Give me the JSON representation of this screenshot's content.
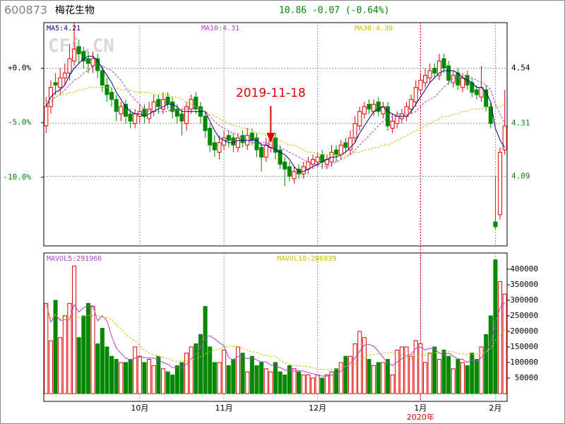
{
  "header": {
    "code": "600873",
    "name": "梅花生物",
    "quote": "10.86 -0.07 (-0.64%)"
  },
  "watermark": "CFi.CN",
  "chart_data": [
    {
      "type": "candlestick",
      "annotation": "2019-11-18",
      "up_color": "#e00000",
      "down_color": "#008800",
      "open": [
        4.3,
        4.38,
        4.48,
        4.46,
        4.5,
        4.52,
        4.57,
        4.63,
        4.61,
        4.58,
        4.55,
        4.58,
        4.53,
        4.47,
        4.44,
        4.41,
        4.35,
        4.39,
        4.35,
        4.31,
        4.34,
        4.37,
        4.33,
        4.36,
        4.41,
        4.37,
        4.42,
        4.4,
        4.37,
        4.35,
        4.31,
        4.37,
        4.42,
        4.38,
        4.34,
        4.29,
        4.23,
        4.19,
        4.22,
        4.26,
        4.25,
        4.21,
        4.26,
        4.22,
        4.27,
        4.25,
        4.21,
        4.17,
        4.21,
        4.25,
        4.2,
        4.15,
        4.13,
        4.08,
        4.12,
        4.1,
        4.12,
        4.14,
        4.15,
        4.18,
        4.14,
        4.15,
        4.2,
        4.18,
        4.23,
        4.2,
        4.25,
        4.3,
        4.35,
        4.39,
        4.36,
        4.4,
        4.35,
        4.38,
        4.29,
        4.31,
        4.33,
        4.34,
        4.37,
        4.4,
        4.45,
        4.48,
        4.5,
        4.54,
        4.51,
        4.58,
        4.55,
        4.48,
        4.52,
        4.46,
        4.51,
        4.48,
        4.45,
        4.42,
        4.45,
        4.38,
        3.9,
        3.93,
        4.2
      ],
      "high": [
        4.42,
        4.49,
        4.52,
        4.54,
        4.56,
        4.64,
        4.73,
        4.66,
        4.63,
        4.61,
        4.61,
        4.6,
        4.55,
        4.5,
        4.46,
        4.43,
        4.4,
        4.41,
        4.37,
        4.37,
        4.39,
        4.39,
        4.4,
        4.43,
        4.43,
        4.44,
        4.44,
        4.42,
        4.39,
        4.37,
        4.4,
        4.43,
        4.44,
        4.4,
        4.36,
        4.31,
        4.26,
        4.26,
        4.28,
        4.28,
        4.27,
        4.27,
        4.28,
        4.29,
        4.29,
        4.27,
        4.23,
        4.25,
        4.26,
        4.27,
        4.22,
        4.17,
        4.15,
        4.13,
        4.14,
        4.15,
        4.17,
        4.18,
        4.19,
        4.2,
        4.18,
        4.22,
        4.22,
        4.24,
        4.25,
        4.28,
        4.34,
        4.38,
        4.4,
        4.41,
        4.41,
        4.42,
        4.4,
        4.4,
        4.35,
        4.36,
        4.37,
        4.4,
        4.43,
        4.49,
        4.52,
        4.54,
        4.56,
        4.56,
        4.6,
        4.6,
        4.57,
        4.53,
        4.54,
        4.52,
        4.53,
        4.5,
        4.47,
        4.55,
        4.47,
        4.4,
        4.09,
        4.21,
        4.45
      ],
      "low": [
        4.27,
        4.35,
        4.43,
        4.43,
        4.47,
        4.49,
        4.55,
        4.56,
        4.54,
        4.52,
        4.52,
        4.5,
        4.44,
        4.4,
        4.38,
        4.32,
        4.32,
        4.31,
        4.29,
        4.29,
        4.31,
        4.31,
        4.31,
        4.34,
        4.35,
        4.35,
        4.37,
        4.33,
        4.31,
        4.26,
        4.28,
        4.35,
        4.35,
        4.31,
        4.25,
        4.19,
        4.17,
        4.16,
        4.2,
        4.21,
        4.19,
        4.19,
        4.21,
        4.2,
        4.22,
        4.17,
        4.11,
        4.15,
        4.19,
        4.16,
        4.12,
        4.05,
        4.07,
        4.06,
        4.08,
        4.08,
        4.1,
        4.12,
        4.13,
        4.12,
        4.12,
        4.13,
        4.15,
        4.16,
        4.19,
        4.18,
        4.23,
        4.28,
        4.33,
        4.35,
        4.34,
        4.34,
        4.33,
        4.28,
        4.27,
        4.29,
        4.31,
        4.32,
        4.35,
        4.38,
        4.43,
        4.46,
        4.48,
        4.5,
        4.49,
        4.52,
        4.47,
        4.46,
        4.45,
        4.44,
        4.45,
        4.42,
        4.41,
        4.4,
        4.36,
        4.29,
        3.87,
        3.91,
        4.18
      ],
      "close": [
        4.38,
        4.46,
        4.47,
        4.5,
        4.52,
        4.58,
        4.62,
        4.6,
        4.57,
        4.56,
        4.58,
        4.53,
        4.47,
        4.43,
        4.41,
        4.36,
        4.38,
        4.34,
        4.32,
        4.35,
        4.36,
        4.34,
        4.37,
        4.4,
        4.38,
        4.41,
        4.39,
        4.36,
        4.34,
        4.32,
        4.38,
        4.41,
        4.37,
        4.34,
        4.28,
        4.22,
        4.2,
        4.23,
        4.25,
        4.24,
        4.22,
        4.25,
        4.23,
        4.26,
        4.24,
        4.2,
        4.17,
        4.22,
        4.24,
        4.19,
        4.14,
        4.12,
        4.09,
        4.11,
        4.1,
        4.13,
        4.15,
        4.16,
        4.17,
        4.15,
        4.16,
        4.19,
        4.18,
        4.22,
        4.21,
        4.25,
        4.31,
        4.36,
        4.38,
        4.37,
        4.39,
        4.36,
        4.38,
        4.3,
        4.32,
        4.34,
        4.35,
        4.38,
        4.41,
        4.46,
        4.49,
        4.51,
        4.53,
        4.52,
        4.57,
        4.54,
        4.49,
        4.51,
        4.47,
        4.5,
        4.47,
        4.44,
        4.43,
        4.46,
        4.38,
        4.31,
        3.88,
        4.19,
        4.3
      ],
      "series": [
        {
          "name": "MA5:4.21",
          "color": "#000080",
          "values": [
            4.38,
            4.42,
            4.44,
            4.45,
            4.47,
            4.51,
            4.54,
            4.56,
            4.58,
            4.59,
            4.59,
            4.57,
            4.54,
            4.51,
            4.48,
            4.44,
            4.41,
            4.38,
            4.36,
            4.35,
            4.35,
            4.34,
            4.35,
            4.36,
            4.37,
            4.38,
            4.39,
            4.39,
            4.38,
            4.36,
            4.36,
            4.36,
            4.36,
            4.36,
            4.36,
            4.32,
            4.28,
            4.25,
            4.24,
            4.23,
            4.23,
            4.24,
            4.24,
            4.24,
            4.24,
            4.24,
            4.22,
            4.22,
            4.21,
            4.2,
            4.19,
            4.18,
            4.16,
            4.13,
            4.11,
            4.11,
            4.12,
            4.13,
            4.14,
            4.15,
            4.16,
            4.17,
            4.17,
            4.18,
            4.19,
            4.21,
            4.23,
            4.27,
            4.3,
            4.33,
            4.36,
            4.37,
            4.38,
            4.36,
            4.35,
            4.34,
            4.34,
            4.34,
            4.36,
            4.39,
            4.42,
            4.45,
            4.48,
            4.5,
            4.52,
            4.53,
            4.53,
            4.53,
            4.52,
            4.5,
            4.49,
            4.48,
            4.46,
            4.46,
            4.44,
            4.4,
            4.29,
            4.24,
            4.21
          ]
        },
        {
          "name": "MA10:4.31",
          "color": "#b040d0",
          "values": [
            4.38,
            4.4,
            4.42,
            4.43,
            4.45,
            4.47,
            4.49,
            4.5,
            4.52,
            4.53,
            4.55,
            4.56,
            4.55,
            4.54,
            4.53,
            4.51,
            4.49,
            4.46,
            4.43,
            4.41,
            4.39,
            4.37,
            4.36,
            4.36,
            4.36,
            4.36,
            4.36,
            4.37,
            4.37,
            4.37,
            4.37,
            4.37,
            4.37,
            4.37,
            4.36,
            4.34,
            4.32,
            4.3,
            4.29,
            4.28,
            4.27,
            4.26,
            4.25,
            4.24,
            4.23,
            4.23,
            4.23,
            4.23,
            4.22,
            4.22,
            4.21,
            4.2,
            4.19,
            4.18,
            4.17,
            4.16,
            4.15,
            4.14,
            4.14,
            4.13,
            4.13,
            4.14,
            4.15,
            4.16,
            4.17,
            4.18,
            4.2,
            4.22,
            4.24,
            4.26,
            4.28,
            4.3,
            4.32,
            4.33,
            4.34,
            4.35,
            4.35,
            4.35,
            4.35,
            4.36,
            4.38,
            4.4,
            4.41,
            4.42,
            4.44,
            4.46,
            4.48,
            4.5,
            4.5,
            4.51,
            4.51,
            4.5,
            4.49,
            4.48,
            4.47,
            4.45,
            4.39,
            4.35,
            4.31
          ]
        },
        {
          "name": "MA30:4.39",
          "color": "#c8c000",
          "values": [
            4.4,
            4.41,
            4.42,
            4.43,
            4.43,
            4.44,
            4.44,
            4.45,
            4.45,
            4.46,
            4.46,
            4.46,
            4.46,
            4.46,
            4.46,
            4.46,
            4.45,
            4.45,
            4.45,
            4.44,
            4.44,
            4.44,
            4.44,
            4.43,
            4.43,
            4.43,
            4.43,
            4.42,
            4.42,
            4.41,
            4.4,
            4.39,
            4.38,
            4.37,
            4.36,
            4.35,
            4.34,
            4.33,
            4.32,
            4.31,
            4.3,
            4.3,
            4.29,
            4.29,
            4.28,
            4.27,
            4.27,
            4.26,
            4.26,
            4.25,
            4.24,
            4.23,
            4.22,
            4.22,
            4.21,
            4.2,
            4.19,
            4.19,
            4.18,
            4.18,
            4.18,
            4.18,
            4.18,
            4.18,
            4.18,
            4.18,
            4.19,
            4.19,
            4.2,
            4.2,
            4.21,
            4.21,
            4.22,
            4.22,
            4.23,
            4.24,
            4.25,
            4.26,
            4.27,
            4.28,
            4.29,
            4.3,
            4.31,
            4.32,
            4.33,
            4.34,
            4.34,
            4.35,
            4.35,
            4.36,
            4.36,
            4.37,
            4.37,
            4.37,
            4.38,
            4.38,
            4.38,
            4.38,
            4.39
          ]
        }
      ],
      "ylim": [
        3.8,
        4.73
      ],
      "yticks": [
        4.54,
        4.31,
        4.09
      ],
      "y2lim": [
        -16.3,
        4.19
      ],
      "y2ticks": [
        {
          "value": 0,
          "label": "+0.0%"
        },
        {
          "value": -5,
          "label": "-5.0%"
        },
        {
          "value": -10,
          "label": "-10.0%"
        }
      ],
      "grid": true
    },
    {
      "type": "bar",
      "x_note": "2020年",
      "categories": [
        null,
        null,
        null,
        null,
        null,
        null,
        null,
        null,
        null,
        null,
        null,
        null,
        null,
        null,
        null,
        null,
        null,
        null,
        null,
        null,
        "10月",
        null,
        null,
        null,
        null,
        null,
        null,
        null,
        null,
        null,
        null,
        null,
        null,
        null,
        null,
        null,
        null,
        null,
        "11月",
        null,
        null,
        null,
        null,
        null,
        null,
        null,
        null,
        null,
        null,
        null,
        null,
        null,
        null,
        null,
        null,
        null,
        null,
        null,
        "12月",
        null,
        null,
        null,
        null,
        null,
        null,
        null,
        null,
        null,
        null,
        null,
        null,
        null,
        null,
        null,
        null,
        null,
        null,
        null,
        null,
        null,
        "1月",
        null,
        null,
        null,
        null,
        null,
        null,
        null,
        null,
        null,
        null,
        null,
        null,
        null,
        null,
        null,
        "2月",
        null,
        null
      ],
      "values": [
        290000,
        170000,
        300000,
        180000,
        250000,
        290000,
        410000,
        180000,
        250000,
        290000,
        280000,
        160000,
        210000,
        150000,
        120000,
        110000,
        100000,
        100000,
        110000,
        150000,
        120000,
        100000,
        110000,
        90000,
        120000,
        80000,
        70000,
        60000,
        90000,
        100000,
        130000,
        150000,
        160000,
        190000,
        280000,
        150000,
        100000,
        100000,
        140000,
        90000,
        110000,
        150000,
        130000,
        70000,
        120000,
        90000,
        100000,
        80000,
        70000,
        100000,
        70000,
        60000,
        90000,
        80000,
        70000,
        60000,
        60000,
        50000,
        60000,
        50000,
        60000,
        70000,
        80000,
        100000,
        120000,
        120000,
        160000,
        200000,
        180000,
        110000,
        90000,
        100000,
        100000,
        110000,
        60000,
        140000,
        150000,
        150000,
        120000,
        170000,
        160000,
        100000,
        130000,
        150000,
        110000,
        140000,
        120000,
        80000,
        110000,
        100000,
        90000,
        130000,
        110000,
        150000,
        190000,
        250000,
        430000,
        360000,
        320000
      ],
      "series": [
        {
          "name": "MAVOL5:291966",
          "color": "#b040d0",
          "values": [
            290000,
            230000,
            253000,
            235000,
            238000,
            238000,
            286000,
            262000,
            276000,
            284000,
            282000,
            234000,
            250000,
            234000,
            184000,
            146000,
            130000,
            114000,
            108000,
            114000,
            118000,
            116000,
            114000,
            114000,
            108000,
            100000,
            94000,
            84000,
            84000,
            84000,
            94000,
            112000,
            126000,
            150000,
            182000,
            186000,
            176000,
            164000,
            154000,
            116000,
            108000,
            120000,
            118000,
            112000,
            116000,
            108000,
            102000,
            102000,
            92000,
            88000,
            84000,
            76000,
            74000,
            72000,
            74000,
            72000,
            68000,
            64000,
            60000,
            56000,
            56000,
            60000,
            64000,
            72000,
            86000,
            98000,
            114000,
            136000,
            156000,
            158000,
            152000,
            136000,
            116000,
            100000,
            90000,
            102000,
            112000,
            122000,
            126000,
            146000,
            150000,
            140000,
            146000,
            142000,
            130000,
            126000,
            130000,
            120000,
            112000,
            110000,
            100000,
            108000,
            104000,
            116000,
            134000,
            166000,
            226000,
            276000,
            291966
          ]
        },
        {
          "name": "MAVOL10:206939",
          "color": "#c8c000",
          "values": [
            290000,
            240000,
            255000,
            240000,
            238000,
            240000,
            254000,
            245000,
            249000,
            252000,
            251000,
            252000,
            247000,
            244000,
            238000,
            222000,
            208000,
            190000,
            178000,
            170000,
            154000,
            140000,
            130000,
            124000,
            120000,
            117000,
            113000,
            107000,
            104000,
            105000,
            106000,
            109000,
            112000,
            119000,
            127000,
            135000,
            139000,
            144000,
            151000,
            152000,
            151000,
            151000,
            146000,
            140000,
            135000,
            132000,
            126000,
            122000,
            120000,
            121000,
            106000,
            99000,
            94000,
            90000,
            90000,
            88000,
            87000,
            83000,
            79000,
            78000,
            78000,
            77000,
            78000,
            82000,
            88000,
            91000,
            96000,
            105000,
            117000,
            123000,
            126000,
            129000,
            130000,
            132000,
            132000,
            128000,
            124000,
            117000,
            112000,
            116000,
            122000,
            124000,
            126000,
            131000,
            133000,
            134000,
            136000,
            134000,
            128000,
            128000,
            126000,
            125000,
            128000,
            130000,
            133000,
            146000,
            172000,
            185000,
            206939
          ]
        }
      ],
      "ylim": [
        -25000,
        452000
      ],
      "yticks": [
        50000,
        100000,
        150000,
        200000,
        250000,
        300000,
        350000,
        400000
      ]
    }
  ]
}
